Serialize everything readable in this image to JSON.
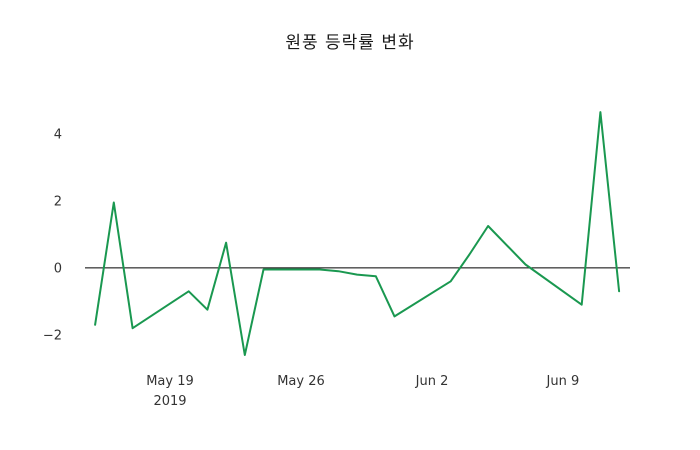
{
  "chart_data": {
    "type": "line",
    "title": "원풍 등락률 변화",
    "xlabel": "",
    "ylabel": "",
    "grid": false,
    "legend": false,
    "background": "#ffffff",
    "xlim": [
      "2019-05-14T11:00:00Z",
      "2019-06-12T14:00:00Z"
    ],
    "ylim": [
      -2.9,
      5.16
    ],
    "zero_line": {
      "value": 0,
      "color": "#000000",
      "width": 1
    },
    "series": [
      {
        "name": "등락률",
        "color": "#1a9850",
        "stroke_width": 2,
        "x": [
          "2019-05-15",
          "2019-05-16",
          "2019-05-17",
          "2019-05-20",
          "2019-05-21",
          "2019-05-22",
          "2019-05-23",
          "2019-05-24",
          "2019-05-27",
          "2019-05-28",
          "2019-05-29",
          "2019-05-30",
          "2019-05-31",
          "2019-06-03",
          "2019-06-04",
          "2019-06-05",
          "2019-06-07",
          "2019-06-10",
          "2019-06-11",
          "2019-06-12"
        ],
        "y": [
          -1.7,
          1.95,
          -1.8,
          -0.7,
          -1.25,
          0.75,
          -2.6,
          -0.05,
          -0.05,
          -0.1,
          -0.2,
          -0.25,
          -1.45,
          -0.4,
          0.4,
          1.25,
          0.1,
          -1.1,
          4.65,
          -0.7
        ]
      }
    ],
    "yticks": [
      {
        "label": "−2",
        "value": -2
      },
      {
        "label": "0",
        "value": 0
      },
      {
        "label": "2",
        "value": 2
      },
      {
        "label": "4",
        "value": 4
      }
    ],
    "xticks": [
      {
        "label": "May 19",
        "sublabel": "2019",
        "date": "2019-05-19"
      },
      {
        "label": "May 26",
        "sublabel": "",
        "date": "2019-05-26"
      },
      {
        "label": "Jun 2",
        "sublabel": "",
        "date": "2019-06-02"
      },
      {
        "label": "Jun 9",
        "sublabel": "",
        "date": "2019-06-09"
      }
    ]
  }
}
